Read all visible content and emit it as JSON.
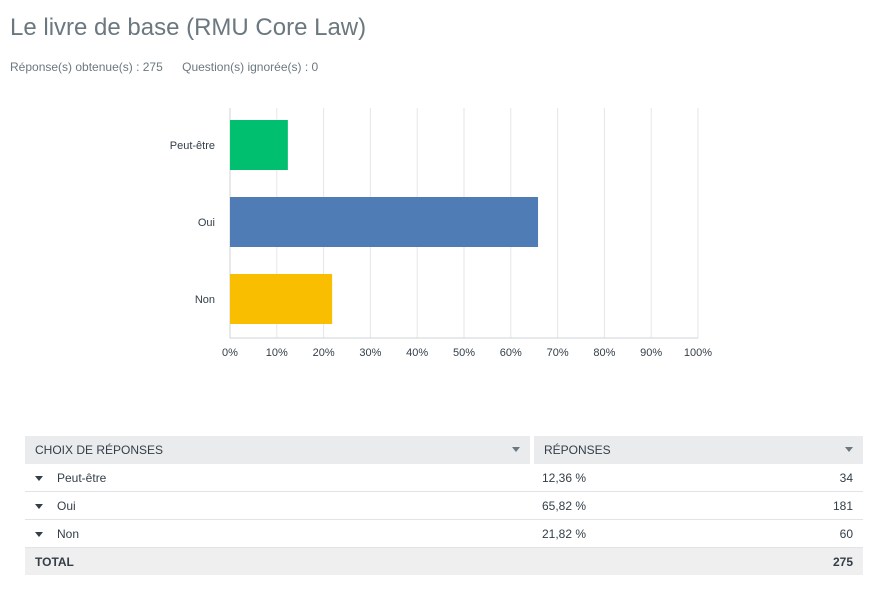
{
  "question": {
    "title": "Le livre de base (RMU Core Law)",
    "answered_label": "Réponse(s) obtenue(s) : 275",
    "skipped_label": "Question(s) ignorée(s) : 0"
  },
  "chart_data": {
    "type": "bar",
    "orientation": "horizontal",
    "categories": [
      "Peut-être",
      "Oui",
      "Non"
    ],
    "values": [
      12.36,
      65.82,
      21.82
    ],
    "colors": [
      "#00bf6f",
      "#507cb6",
      "#f9be00"
    ],
    "xlim": [
      0,
      100
    ],
    "x_ticks": [
      "0%",
      "10%",
      "20%",
      "30%",
      "40%",
      "50%",
      "60%",
      "70%",
      "80%",
      "90%",
      "100%"
    ],
    "grid": true,
    "legend": "none"
  },
  "table": {
    "headers": [
      "CHOIX DE RÉPONSES",
      "RÉPONSES"
    ],
    "rows": [
      {
        "choice": "Peut-être",
        "percent": "12,36 %",
        "count": "34"
      },
      {
        "choice": "Oui",
        "percent": "65,82 %",
        "count": "181"
      },
      {
        "choice": "Non",
        "percent": "21,82 %",
        "count": "60"
      }
    ],
    "total_label": "TOTAL",
    "total_value": "275"
  }
}
